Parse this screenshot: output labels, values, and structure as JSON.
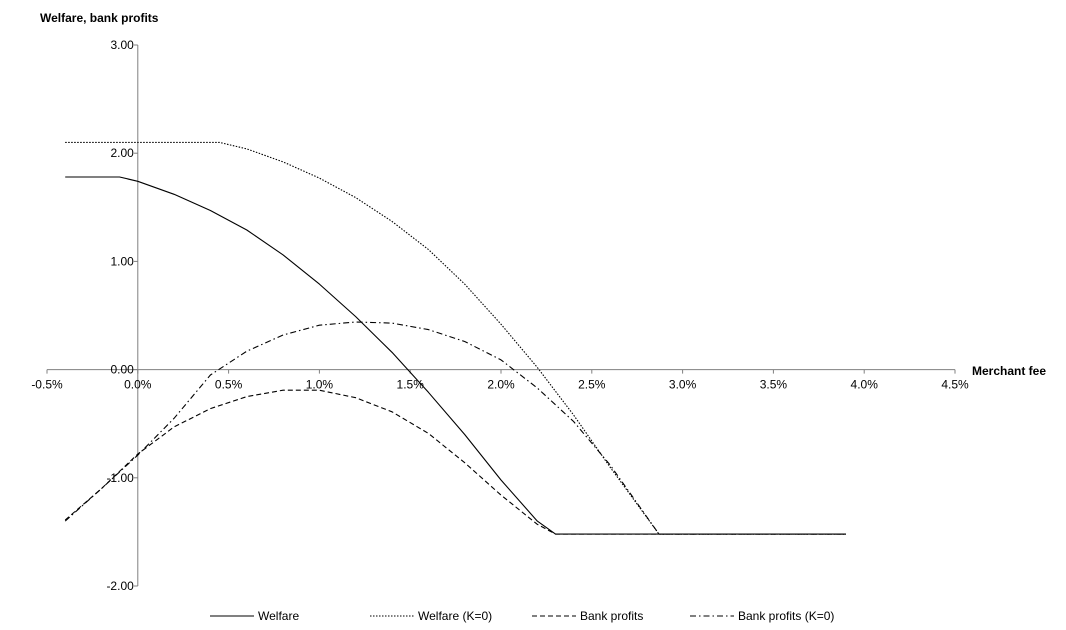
{
  "chart_data": {
    "type": "line",
    "title": "",
    "ylabel": "Welfare, bank profits",
    "xlabel": "Merchant fee",
    "xlim": [
      -0.5,
      4.5
    ],
    "ylim": [
      -2.0,
      3.0
    ],
    "xticks": [
      -0.5,
      0.0,
      0.5,
      1.0,
      1.5,
      2.0,
      2.5,
      3.0,
      3.5,
      4.0,
      4.5
    ],
    "xtick_labels": [
      "-0.5%",
      "0.0%",
      "0.5%",
      "1.0%",
      "1.5%",
      "2.0%",
      "2.5%",
      "3.0%",
      "3.5%",
      "4.0%",
      "4.5%"
    ],
    "yticks": [
      3.0,
      2.0,
      1.0,
      0.0,
      -1.0,
      -2.0
    ],
    "ytick_labels": [
      "3.00",
      "2.00",
      "1.00",
      "0.00",
      "-1.00",
      "-2.00"
    ],
    "grid": false,
    "legend_position": "bottom",
    "series": [
      {
        "name": "Welfare",
        "style": "solid",
        "color": "#000000",
        "x": [
          -0.4,
          -0.1,
          0.0,
          0.2,
          0.4,
          0.6,
          0.8,
          1.0,
          1.2,
          1.4,
          1.6,
          1.8,
          2.0,
          2.2,
          2.3,
          2.5,
          3.0,
          3.5,
          3.9
        ],
        "y": [
          1.78,
          1.78,
          1.74,
          1.62,
          1.47,
          1.29,
          1.06,
          0.79,
          0.49,
          0.16,
          -0.21,
          -0.6,
          -1.02,
          -1.4,
          -1.52,
          -1.52,
          -1.52,
          -1.52,
          -1.52
        ]
      },
      {
        "name": "Welfare (K=0)",
        "style": "dotted",
        "color": "#000000",
        "x": [
          -0.4,
          0.0,
          0.45,
          0.6,
          0.8,
          1.0,
          1.2,
          1.4,
          1.6,
          1.8,
          2.0,
          2.2,
          2.4,
          2.6,
          2.87,
          3.0,
          3.5,
          3.9
        ],
        "y": [
          2.1,
          2.1,
          2.1,
          2.04,
          1.92,
          1.77,
          1.59,
          1.37,
          1.11,
          0.79,
          0.42,
          0.02,
          -0.42,
          -0.9,
          -1.52,
          -1.52,
          -1.52,
          -1.52
        ]
      },
      {
        "name": "Bank profits",
        "style": "dashed",
        "color": "#000000",
        "x": [
          -0.4,
          -0.2,
          0.0,
          0.2,
          0.4,
          0.6,
          0.8,
          1.0,
          1.2,
          1.4,
          1.6,
          1.8,
          2.0,
          2.2,
          2.3,
          2.5,
          3.0,
          3.5,
          3.9
        ],
        "y": [
          -1.39,
          -1.1,
          -0.78,
          -0.53,
          -0.36,
          -0.25,
          -0.19,
          -0.19,
          -0.26,
          -0.39,
          -0.59,
          -0.86,
          -1.16,
          -1.43,
          -1.52,
          -1.52,
          -1.52,
          -1.52,
          -1.52
        ]
      },
      {
        "name": "Bank profits (K=0)",
        "style": "dash-dot",
        "color": "#000000",
        "x": [
          -0.4,
          -0.2,
          0.0,
          0.2,
          0.4,
          0.6,
          0.8,
          1.0,
          1.2,
          1.4,
          1.6,
          1.8,
          2.0,
          2.2,
          2.4,
          2.6,
          2.87,
          3.0,
          3.5,
          3.9
        ],
        "y": [
          -1.4,
          -1.1,
          -0.79,
          -0.45,
          -0.05,
          0.17,
          0.32,
          0.41,
          0.44,
          0.43,
          0.37,
          0.26,
          0.09,
          -0.17,
          -0.48,
          -0.88,
          -1.52,
          -1.52,
          -1.52,
          -1.52
        ]
      }
    ]
  },
  "legend": {
    "items": [
      {
        "label": "Welfare"
      },
      {
        "label": "Welfare (K=0)"
      },
      {
        "label": "Bank profits"
      },
      {
        "label": "Bank profits (K=0)"
      }
    ]
  }
}
